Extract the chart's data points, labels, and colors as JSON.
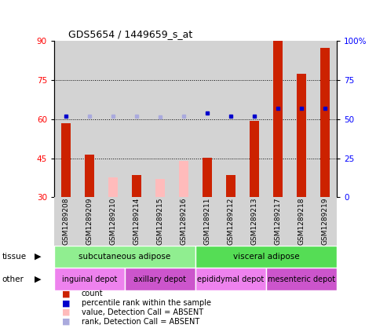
{
  "title": "GDS5654 / 1449659_s_at",
  "samples": [
    "GSM1289208",
    "GSM1289209",
    "GSM1289210",
    "GSM1289214",
    "GSM1289215",
    "GSM1289216",
    "GSM1289211",
    "GSM1289212",
    "GSM1289213",
    "GSM1289217",
    "GSM1289218",
    "GSM1289219"
  ],
  "count_values": [
    58.5,
    46.5,
    null,
    38.5,
    null,
    null,
    45.2,
    38.5,
    59.5,
    90.0,
    77.5,
    87.5
  ],
  "count_absent": [
    null,
    null,
    37.5,
    null,
    37.0,
    44.0,
    null,
    null,
    null,
    null,
    null,
    null
  ],
  "percentile_present_pct": [
    52.0,
    null,
    null,
    null,
    null,
    null,
    54.0,
    52.0,
    52.0,
    57.0,
    57.0,
    57.0
  ],
  "percentile_absent_pct": [
    null,
    52.0,
    52.0,
    52.0,
    51.5,
    52.0,
    null,
    null,
    null,
    null,
    null,
    null
  ],
  "ylim_left": [
    30,
    90
  ],
  "ylim_right": [
    0,
    100
  ],
  "yticks_left": [
    30,
    45,
    60,
    75,
    90
  ],
  "yticks_right": [
    0,
    25,
    50,
    75,
    100
  ],
  "tissue_groups": [
    {
      "label": "subcutaneous adipose",
      "start": 0,
      "end": 6,
      "color": "#90ee90"
    },
    {
      "label": "visceral adipose",
      "start": 6,
      "end": 12,
      "color": "#55dd55"
    }
  ],
  "other_groups": [
    {
      "label": "inguinal depot",
      "start": 0,
      "end": 3,
      "color": "#ee82ee"
    },
    {
      "label": "axillary depot",
      "start": 3,
      "end": 6,
      "color": "#cc55cc"
    },
    {
      "label": "epididymal depot",
      "start": 6,
      "end": 9,
      "color": "#ee82ee"
    },
    {
      "label": "mesenteric depot",
      "start": 9,
      "end": 12,
      "color": "#cc55cc"
    }
  ],
  "bar_width": 0.4,
  "count_color": "#cc2200",
  "count_absent_color": "#ffbbbb",
  "percentile_color": "#0000cc",
  "percentile_absent_color": "#aaaadd",
  "bg_color": "#d3d3d3",
  "grid_yticks": [
    45,
    60,
    75
  ],
  "legend_items": [
    {
      "color": "#cc2200",
      "label": "count"
    },
    {
      "color": "#0000cc",
      "label": "percentile rank within the sample"
    },
    {
      "color": "#ffbbbb",
      "label": "value, Detection Call = ABSENT"
    },
    {
      "color": "#aaaadd",
      "label": "rank, Detection Call = ABSENT"
    }
  ]
}
